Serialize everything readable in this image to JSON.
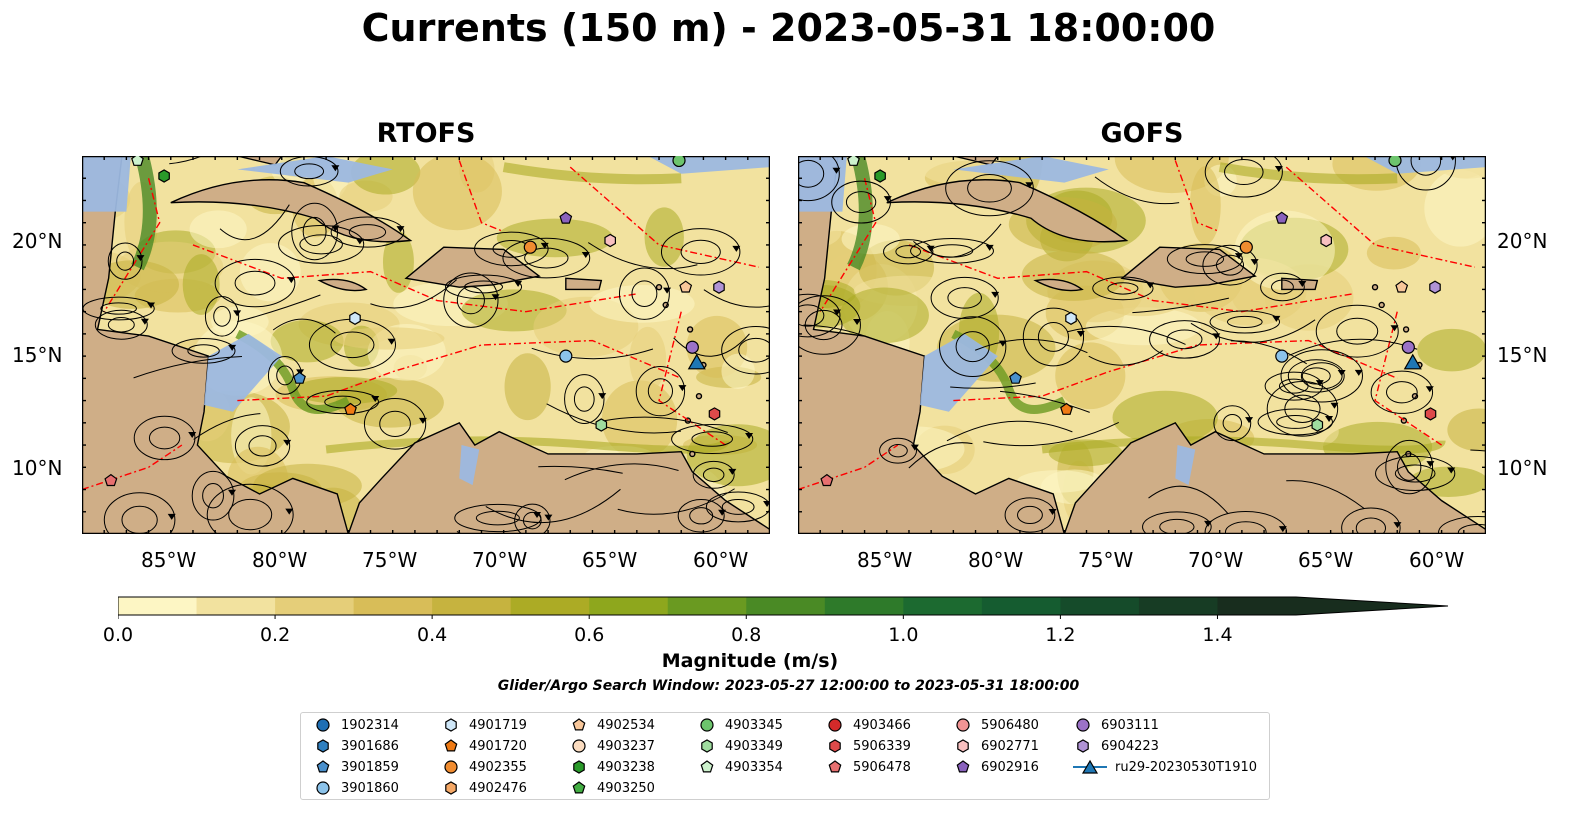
{
  "title": "Currents (150 m) - 2023-05-31 18:00:00",
  "panels": [
    {
      "title": "RTOFS"
    },
    {
      "title": "GOFS"
    }
  ],
  "x_tick_labels": [
    "85°W",
    "80°W",
    "75°W",
    "70°W",
    "65°W",
    "60°W"
  ],
  "y_tick_labels": [
    "20°N",
    "15°N",
    "10°N"
  ],
  "map_extent": {
    "lon": [
      -89,
      -58
    ],
    "lat": [
      7,
      24
    ]
  },
  "colors": {
    "land": "#cfae87",
    "shallow_water": "#9cb8e0",
    "eez_lines": "#ff0000",
    "colormap": [
      "#fdf6c4",
      "#f2e29f",
      "#e5ce79",
      "#d8bd58",
      "#c6b33f",
      "#acab25",
      "#8ea71d",
      "#6a9a21",
      "#4a8a25",
      "#2e7a2a",
      "#1c6a30",
      "#155c30",
      "#154b2a",
      "#173c24",
      "#182d1e"
    ]
  },
  "colorbar": {
    "label": "Magnitude (m/s)",
    "ticks": [
      "0.0",
      "0.2",
      "0.4",
      "0.6",
      "0.8",
      "1.0",
      "1.2",
      "1.4"
    ],
    "min": 0.0,
    "max": 1.5,
    "extend": "max"
  },
  "subtitle": "Glider/Argo Search Window: 2023-05-27 12:00:00 to 2023-05-31 18:00:00",
  "legend": [
    {
      "label": "1902314",
      "marker": "circle",
      "color": "#1f6fb4"
    },
    {
      "label": "3901686",
      "marker": "hexagon",
      "color": "#2f7fbf"
    },
    {
      "label": "3901859",
      "marker": "pentagon",
      "color": "#4a90cc"
    },
    {
      "label": "3901860",
      "marker": "circle",
      "color": "#8cc3ea"
    },
    {
      "label": "4901719",
      "marker": "hexagon",
      "color": "#cfe7f8"
    },
    {
      "label": "4901720",
      "marker": "pentagon",
      "color": "#ef7a14"
    },
    {
      "label": "4902355",
      "marker": "circle",
      "color": "#f08c30"
    },
    {
      "label": "4902476",
      "marker": "hexagon",
      "color": "#f5a866"
    },
    {
      "label": "4902534",
      "marker": "pentagon",
      "color": "#f8c79a"
    },
    {
      "label": "4903237",
      "marker": "circle",
      "color": "#fbdcc0"
    },
    {
      "label": "4903238",
      "marker": "hexagon",
      "color": "#2a9a2a"
    },
    {
      "label": "4903250",
      "marker": "pentagon",
      "color": "#43ae43"
    },
    {
      "label": "4903345",
      "marker": "circle",
      "color": "#6dc46d"
    },
    {
      "label": "4903349",
      "marker": "hexagon",
      "color": "#9fdc9f"
    },
    {
      "label": "4903354",
      "marker": "pentagon",
      "color": "#cdf2cd"
    },
    {
      "label": "4903466",
      "marker": "circle",
      "color": "#d42a2a"
    },
    {
      "label": "5906339",
      "marker": "hexagon",
      "color": "#de4a4a"
    },
    {
      "label": "5906478",
      "marker": "pentagon",
      "color": "#e77070"
    },
    {
      "label": "5906480",
      "marker": "circle",
      "color": "#f29494"
    },
    {
      "label": "6902771",
      "marker": "hexagon",
      "color": "#f8c0c0"
    },
    {
      "label": "6902916",
      "marker": "pentagon",
      "color": "#8a62bd"
    },
    {
      "label": "6903111",
      "marker": "circle",
      "color": "#9b72c7"
    },
    {
      "label": "6904223",
      "marker": "hexagon",
      "color": "#b093d5"
    },
    {
      "label": "ru29-20230530T1910",
      "marker": "triangle-line",
      "color": "#1f77b4"
    }
  ],
  "platform_positions": [
    {
      "id": "4903354",
      "lon": -86.5,
      "lat": 23.8
    },
    {
      "id": "4903238",
      "lon": -85.3,
      "lat": 23.1
    },
    {
      "id": "4903345",
      "lon": -62.1,
      "lat": 23.8
    },
    {
      "id": "6902916",
      "lon": -67.2,
      "lat": 21.2
    },
    {
      "id": "4902355",
      "lon": -68.8,
      "lat": 19.9
    },
    {
      "id": "6902771",
      "lon": -65.2,
      "lat": 20.2
    },
    {
      "id": "6904223",
      "lon": -60.3,
      "lat": 18.1
    },
    {
      "id": "4902534",
      "lon": -61.8,
      "lat": 18.1
    },
    {
      "id": "4901719",
      "lon": -76.7,
      "lat": 16.7
    },
    {
      "id": "3901860",
      "lon": -67.2,
      "lat": 15.0
    },
    {
      "id": "6903111",
      "lon": -61.5,
      "lat": 15.4
    },
    {
      "id": "3901859",
      "lon": -79.2,
      "lat": 14.0
    },
    {
      "id": "4901720",
      "lon": -76.9,
      "lat": 12.6
    },
    {
      "id": "5906339",
      "lon": -60.5,
      "lat": 12.4
    },
    {
      "id": "4903349",
      "lon": -65.6,
      "lat": 11.9
    },
    {
      "id": "5906478",
      "lon": -87.7,
      "lat": 9.4
    },
    {
      "id": "ru29-20230530T1910",
      "lon": -61.3,
      "lat": 14.7
    }
  ]
}
